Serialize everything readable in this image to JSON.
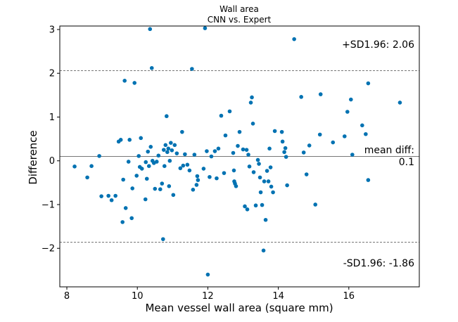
{
  "chart_data": {
    "type": "scatter",
    "title": "Wall area",
    "subtitle": "CNN vs. Expert",
    "xlabel": "Mean vessel wall area (square mm)",
    "ylabel": "Difference",
    "xlim": [
      7.8,
      18.0
    ],
    "ylim": [
      -2.88,
      3.08
    ],
    "xticks": [
      8,
      10,
      12,
      14,
      16
    ],
    "yticks": [
      -2,
      -1,
      0,
      1,
      2,
      3
    ],
    "grid": false,
    "color": "#0072b2",
    "mean_diff": 0.1,
    "upper_limit": 2.06,
    "lower_limit": -1.86,
    "annotations": {
      "upper": "+SD1.96: 2.06",
      "mean_line1": "mean diff:",
      "mean_line2": "0.1",
      "lower": "-SD1.96: -1.86"
    },
    "points": [
      [
        8.22,
        -0.13
      ],
      [
        8.58,
        -0.38
      ],
      [
        8.7,
        -0.12
      ],
      [
        8.92,
        0.11
      ],
      [
        8.98,
        -0.81
      ],
      [
        9.18,
        -0.8
      ],
      [
        9.27,
        -0.9
      ],
      [
        9.38,
        -0.8
      ],
      [
        9.47,
        0.44
      ],
      [
        9.53,
        0.48
      ],
      [
        9.58,
        -1.4
      ],
      [
        9.6,
        -0.43
      ],
      [
        9.64,
        1.83
      ],
      [
        9.67,
        -1.08
      ],
      [
        9.75,
        -0.02
      ],
      [
        9.78,
        0.48
      ],
      [
        9.84,
        -1.31
      ],
      [
        9.86,
        -0.63
      ],
      [
        9.92,
        1.78
      ],
      [
        9.98,
        -0.34
      ],
      [
        10.04,
        0.11
      ],
      [
        10.07,
        -0.14
      ],
      [
        10.1,
        0.52
      ],
      [
        10.13,
        -0.18
      ],
      [
        10.23,
        -0.88
      ],
      [
        10.24,
        -0.03
      ],
      [
        10.27,
        -0.41
      ],
      [
        10.3,
        0.21
      ],
      [
        10.33,
        -0.12
      ],
      [
        10.36,
        3.01
      ],
      [
        10.38,
        0.32
      ],
      [
        10.41,
        2.12
      ],
      [
        10.43,
        0.0
      ],
      [
        10.47,
        -0.05
      ],
      [
        10.5,
        -0.64
      ],
      [
        10.55,
        -0.02
      ],
      [
        10.6,
        0.12
      ],
      [
        10.65,
        -0.65
      ],
      [
        10.7,
        -0.52
      ],
      [
        10.73,
        -1.79
      ],
      [
        10.75,
        0.25
      ],
      [
        10.77,
        -0.12
      ],
      [
        10.8,
        0.36
      ],
      [
        10.83,
        1.02
      ],
      [
        10.85,
        0.2
      ],
      [
        10.88,
        0.28
      ],
      [
        10.9,
        -0.58
      ],
      [
        10.92,
        0.0
      ],
      [
        10.95,
        0.41
      ],
      [
        10.98,
        0.24
      ],
      [
        11.02,
        -0.78
      ],
      [
        11.06,
        0.36
      ],
      [
        11.12,
        0.17
      ],
      [
        11.22,
        -0.17
      ],
      [
        11.27,
        0.66
      ],
      [
        11.3,
        -0.11
      ],
      [
        11.35,
        0.15
      ],
      [
        11.42,
        -0.09
      ],
      [
        11.48,
        -0.22
      ],
      [
        11.55,
        2.1
      ],
      [
        11.58,
        -0.66
      ],
      [
        11.62,
        0.14
      ],
      [
        11.68,
        -0.55
      ],
      [
        11.7,
        -0.35
      ],
      [
        11.72,
        -0.44
      ],
      [
        11.88,
        -0.18
      ],
      [
        11.92,
        3.03
      ],
      [
        11.97,
        0.22
      ],
      [
        12.0,
        -2.6
      ],
      [
        12.05,
        -0.37
      ],
      [
        12.1,
        0.1
      ],
      [
        12.2,
        0.22
      ],
      [
        12.25,
        -0.4
      ],
      [
        12.3,
        0.28
      ],
      [
        12.38,
        1.03
      ],
      [
        12.5,
        0.58
      ],
      [
        12.46,
        -0.28
      ],
      [
        12.62,
        1.13
      ],
      [
        12.72,
        0.18
      ],
      [
        12.74,
        -0.22
      ],
      [
        12.75,
        -0.47
      ],
      [
        12.77,
        -0.52
      ],
      [
        12.8,
        -0.58
      ],
      [
        12.85,
        0.34
      ],
      [
        12.9,
        0.66
      ],
      [
        13.0,
        0.26
      ],
      [
        13.05,
        -1.04
      ],
      [
        13.1,
        0.25
      ],
      [
        13.12,
        -1.11
      ],
      [
        13.15,
        0.14
      ],
      [
        13.18,
        -0.13
      ],
      [
        13.22,
        1.33
      ],
      [
        13.25,
        1.45
      ],
      [
        13.28,
        0.85
      ],
      [
        13.3,
        -0.26
      ],
      [
        13.36,
        -1.02
      ],
      [
        13.42,
        0.02
      ],
      [
        13.45,
        -0.07
      ],
      [
        13.48,
        -0.38
      ],
      [
        13.5,
        -0.72
      ],
      [
        13.54,
        -1.01
      ],
      [
        13.58,
        -2.05
      ],
      [
        13.6,
        -0.47
      ],
      [
        13.64,
        -1.35
      ],
      [
        13.68,
        -0.23
      ],
      [
        13.72,
        -0.47
      ],
      [
        13.75,
        0.28
      ],
      [
        13.78,
        -0.15
      ],
      [
        13.8,
        -0.59
      ],
      [
        13.85,
        -0.72
      ],
      [
        13.9,
        0.68
      ],
      [
        14.1,
        0.66
      ],
      [
        14.12,
        0.44
      ],
      [
        14.17,
        0.2
      ],
      [
        14.2,
        0.29
      ],
      [
        14.22,
        0.09
      ],
      [
        14.25,
        -0.56
      ],
      [
        14.45,
        2.78
      ],
      [
        14.65,
        1.46
      ],
      [
        14.72,
        0.19
      ],
      [
        14.8,
        -0.31
      ],
      [
        14.88,
        0.35
      ],
      [
        15.05,
        -1.0
      ],
      [
        15.18,
        0.6
      ],
      [
        15.2,
        1.52
      ],
      [
        15.55,
        0.42
      ],
      [
        15.88,
        0.56
      ],
      [
        15.96,
        1.12
      ],
      [
        16.06,
        1.4
      ],
      [
        16.1,
        0.14
      ],
      [
        16.38,
        0.81
      ],
      [
        16.48,
        0.61
      ],
      [
        16.55,
        1.77
      ],
      [
        16.55,
        -0.44
      ],
      [
        17.45,
        1.33
      ]
    ]
  }
}
